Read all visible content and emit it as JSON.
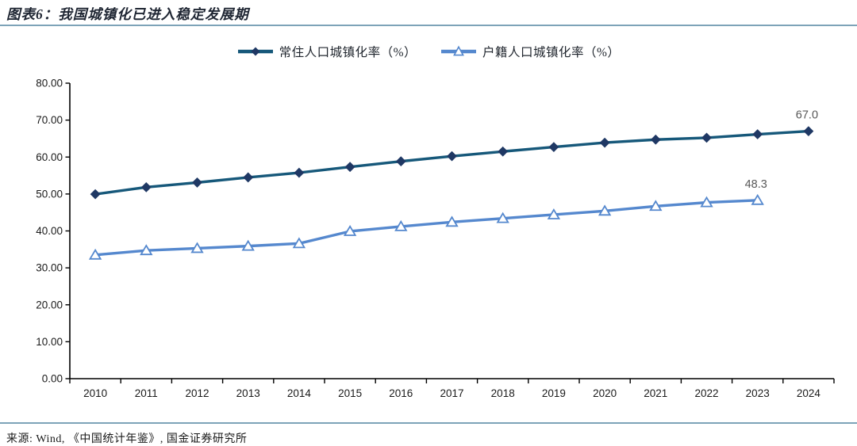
{
  "page": {
    "title": "图表6：我国城镇化已进入稳定发展期",
    "source": "来源: Wind, 《中国统计年鉴》, 国金证券研究所"
  },
  "colors": {
    "divider": "#7da3b8",
    "axis": "#000000",
    "title_text": "#1f2633",
    "legend_text": "#20262e",
    "tick_text": "#1a1a1a",
    "end_label_text": "#575757",
    "resident_line": "#16587a",
    "resident_marker": "#1f3864",
    "hukou_line": "#5588ce",
    "hukou_marker_fill": "#ffffff"
  },
  "chart_data": {
    "type": "line",
    "title": "图表6：我国城镇化已进入稳定发展期",
    "categories": [
      "2010",
      "2011",
      "2012",
      "2013",
      "2014",
      "2015",
      "2016",
      "2017",
      "2018",
      "2019",
      "2020",
      "2021",
      "2022",
      "2023",
      "2024"
    ],
    "series": [
      {
        "name": "常住人口城镇化率（%）",
        "marker": "diamond",
        "line_color": "#16587a",
        "marker_color": "#1f3864",
        "values": [
          49.95,
          51.83,
          53.1,
          54.49,
          55.75,
          57.33,
          58.84,
          60.24,
          61.5,
          62.71,
          63.89,
          64.72,
          65.22,
          66.16,
          67.0
        ],
        "end_label": "67.0"
      },
      {
        "name": "户籍人口城镇化率（%）",
        "marker": "triangle-open",
        "line_color": "#5588ce",
        "marker_fill": "#ffffff",
        "values": [
          33.5,
          34.7,
          35.3,
          35.9,
          36.6,
          39.9,
          41.2,
          42.4,
          43.4,
          44.4,
          45.4,
          46.7,
          47.7,
          48.3
        ],
        "end_label": "48.3"
      }
    ],
    "xlabel": "",
    "ylabel": "",
    "ylim": [
      0,
      80
    ],
    "ytick_values": [
      0,
      10,
      20,
      30,
      40,
      50,
      60,
      70,
      80
    ],
    "ytick_labels": [
      "0.00",
      "10.00",
      "20.00",
      "30.00",
      "40.00",
      "50.00",
      "60.00",
      "70.00",
      "80.00"
    ],
    "grid": false,
    "legend_position": "top-center"
  }
}
